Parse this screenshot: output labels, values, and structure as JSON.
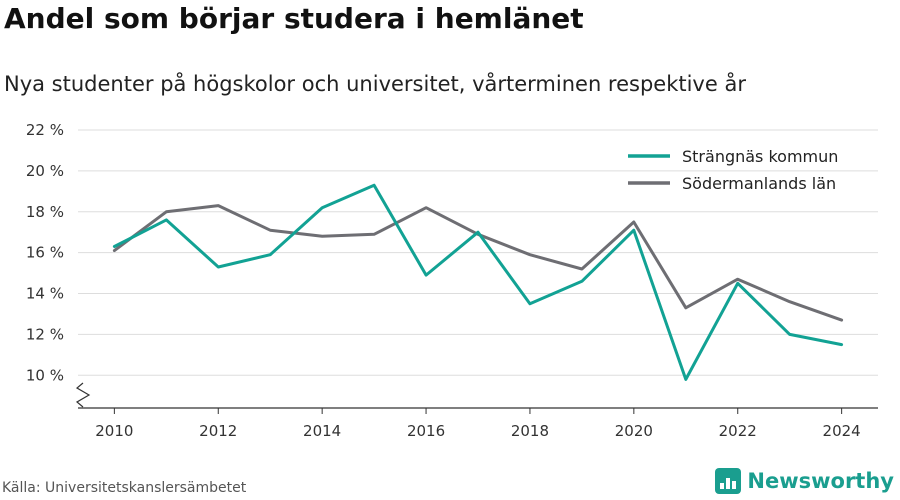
{
  "title": "Andel som börjar studera i hemlänet",
  "subtitle": "Nya studenter på högskolor och universitet, vårterminen respektive år",
  "source": "Källa: Universitetskanslersämbetet",
  "brand": "Newsworthy",
  "colors": {
    "series_1": "#12a294",
    "series_2": "#6e6e73",
    "grid": "#dddddd",
    "axis": "#333333",
    "brand": "#1a9e8f"
  },
  "chart_data": {
    "type": "line",
    "x": [
      2010,
      2011,
      2012,
      2013,
      2014,
      2015,
      2016,
      2017,
      2018,
      2019,
      2020,
      2021,
      2022,
      2023,
      2024
    ],
    "series": [
      {
        "name": "Strängnäs kommun",
        "values": [
          16.3,
          17.6,
          15.3,
          15.9,
          18.2,
          19.3,
          14.9,
          17.0,
          13.5,
          14.6,
          17.1,
          9.8,
          14.5,
          12.0,
          11.5
        ]
      },
      {
        "name": "Södermanlands län",
        "values": [
          16.1,
          18.0,
          18.3,
          17.1,
          16.8,
          16.9,
          18.2,
          16.9,
          15.9,
          15.2,
          17.5,
          13.3,
          14.7,
          13.6,
          12.7
        ]
      }
    ],
    "x_ticks": [
      "2010",
      "2012",
      "2014",
      "2016",
      "2018",
      "2020",
      "2022",
      "2024"
    ],
    "y_ticks": [
      "10 %",
      "12 %",
      "14 %",
      "16 %",
      "18 %",
      "20 %",
      "22 %"
    ],
    "ylim": [
      8.4,
      22
    ],
    "xlim": [
      2009.3,
      2024.7
    ],
    "axis_break": true,
    "grid": true,
    "legend_position": "top-right"
  }
}
